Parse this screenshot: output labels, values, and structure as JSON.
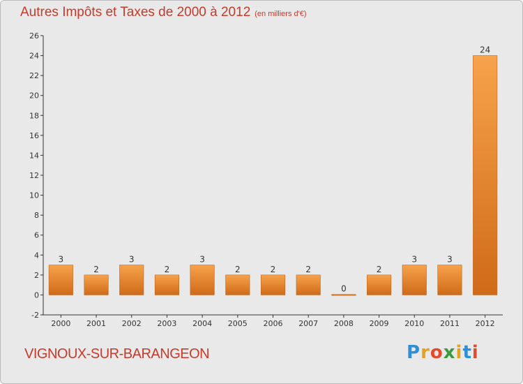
{
  "chart_data": {
    "type": "bar",
    "title": "Autres Impôts et Taxes de 2000 à 2012",
    "subtitle": "(en milliers d'€)",
    "categories": [
      "2000",
      "2001",
      "2002",
      "2003",
      "2004",
      "2005",
      "2006",
      "2007",
      "2008",
      "2009",
      "2010",
      "2011",
      "2012"
    ],
    "values": [
      3,
      2,
      3,
      2,
      3,
      2,
      2,
      2,
      0,
      2,
      3,
      3,
      24
    ],
    "ylim": [
      -2,
      26
    ],
    "yticks": [
      -2,
      0,
      2,
      4,
      6,
      8,
      10,
      12,
      14,
      16,
      18,
      20,
      22,
      24,
      26
    ],
    "grid": false,
    "bar_color": "#ee8a2e",
    "bar_color_top": "#f7a24c",
    "bar_color_bottom": "#cf6a18"
  },
  "commune": "VIGNOUX-SUR-BARANGEON",
  "logo": {
    "letters": [
      "P",
      "r",
      "o",
      "x",
      "i",
      "t",
      "i"
    ],
    "colors": [
      "#2f8fd6",
      "#e6a21c",
      "#e24a2a",
      "#3b9a3b",
      "#e6a21c",
      "#2f8fd6",
      "#e24a2a"
    ]
  },
  "colors": {
    "title": "#c53a2b",
    "axis": "#333333"
  }
}
